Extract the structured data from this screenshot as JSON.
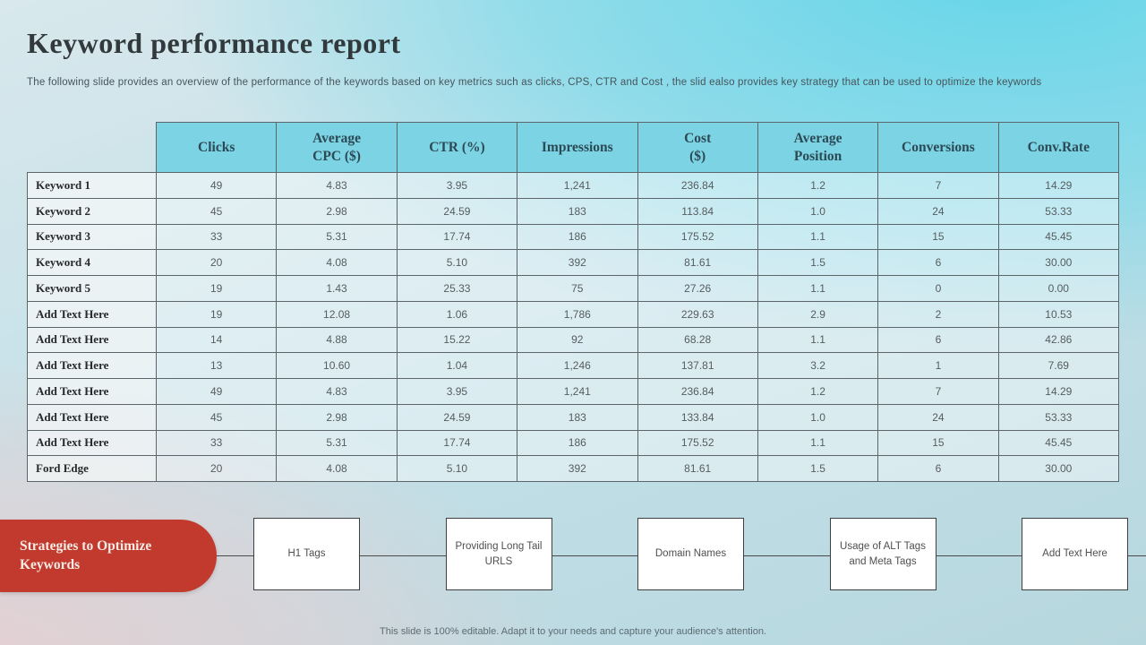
{
  "slide": {
    "title": "Keyword performance report",
    "subtitle": "The following slide provides an overview of the performance of the keywords based on key metrics such as clicks, CPS, CTR and Cost , the slid ealso provides key strategy that can be used to optimize the keywords",
    "footer": "This slide is 100% editable. Adapt it to your needs and capture your audience's attention."
  },
  "table": {
    "columns": [
      "Clicks",
      "Average\nCPC ($)",
      "CTR (%)",
      "Impressions",
      "Cost\n($)",
      "Average\nPosition",
      "Conversions",
      "Conv.Rate"
    ],
    "rows": [
      {
        "label": "Keyword 1",
        "values": [
          "49",
          "4.83",
          "3.95",
          "1,241",
          "236.84",
          "1.2",
          "7",
          "14.29"
        ]
      },
      {
        "label": "Keyword 2",
        "values": [
          "45",
          "2.98",
          "24.59",
          "183",
          "113.84",
          "1.0",
          "24",
          "53.33"
        ]
      },
      {
        "label": "Keyword 3",
        "values": [
          "33",
          "5.31",
          "17.74",
          "186",
          "175.52",
          "1.1",
          "15",
          "45.45"
        ]
      },
      {
        "label": "Keyword 4",
        "values": [
          "20",
          "4.08",
          "5.10",
          "392",
          "81.61",
          "1.5",
          "6",
          "30.00"
        ]
      },
      {
        "label": "Keyword 5",
        "values": [
          "19",
          "1.43",
          "25.33",
          "75",
          "27.26",
          "1.1",
          "0",
          "0.00"
        ]
      },
      {
        "label": "Add Text Here",
        "values": [
          "19",
          "12.08",
          "1.06",
          "1,786",
          "229.63",
          "2.9",
          "2",
          "10.53"
        ]
      },
      {
        "label": "Add Text Here",
        "values": [
          "14",
          "4.88",
          "15.22",
          "92",
          "68.28",
          "1.1",
          "6",
          "42.86"
        ]
      },
      {
        "label": "Add Text Here",
        "values": [
          "13",
          "10.60",
          "1.04",
          "1,246",
          "137.81",
          "3.2",
          "1",
          "7.69"
        ]
      },
      {
        "label": "Add Text Here",
        "values": [
          "49",
          "4.83",
          "3.95",
          "1,241",
          "236.84",
          "1.2",
          "7",
          "14.29"
        ]
      },
      {
        "label": "Add Text Here",
        "values": [
          "45",
          "2.98",
          "24.59",
          "183",
          "133.84",
          "1.0",
          "24",
          "53.33"
        ]
      },
      {
        "label": "Add Text Here",
        "values": [
          "33",
          "5.31",
          "17.74",
          "186",
          "175.52",
          "1.1",
          "15",
          "45.45"
        ]
      },
      {
        "label": "Ford Edge",
        "values": [
          "20",
          "4.08",
          "5.10",
          "392",
          "81.61",
          "1.5",
          "6",
          "30.00"
        ]
      }
    ]
  },
  "strategies": {
    "heading": "Strategies to Optimize Keywords",
    "items": [
      "H1 Tags",
      "Providing Long Tail URLS",
      "Domain Names",
      "Usage of ALT Tags and Meta Tags",
      "Add Text Here"
    ]
  },
  "colors": {
    "table_header_fill": "#7cd3e3",
    "accent_red": "#c23a2e",
    "grid_line": "#5c666a",
    "title_ink": "#31393c"
  }
}
